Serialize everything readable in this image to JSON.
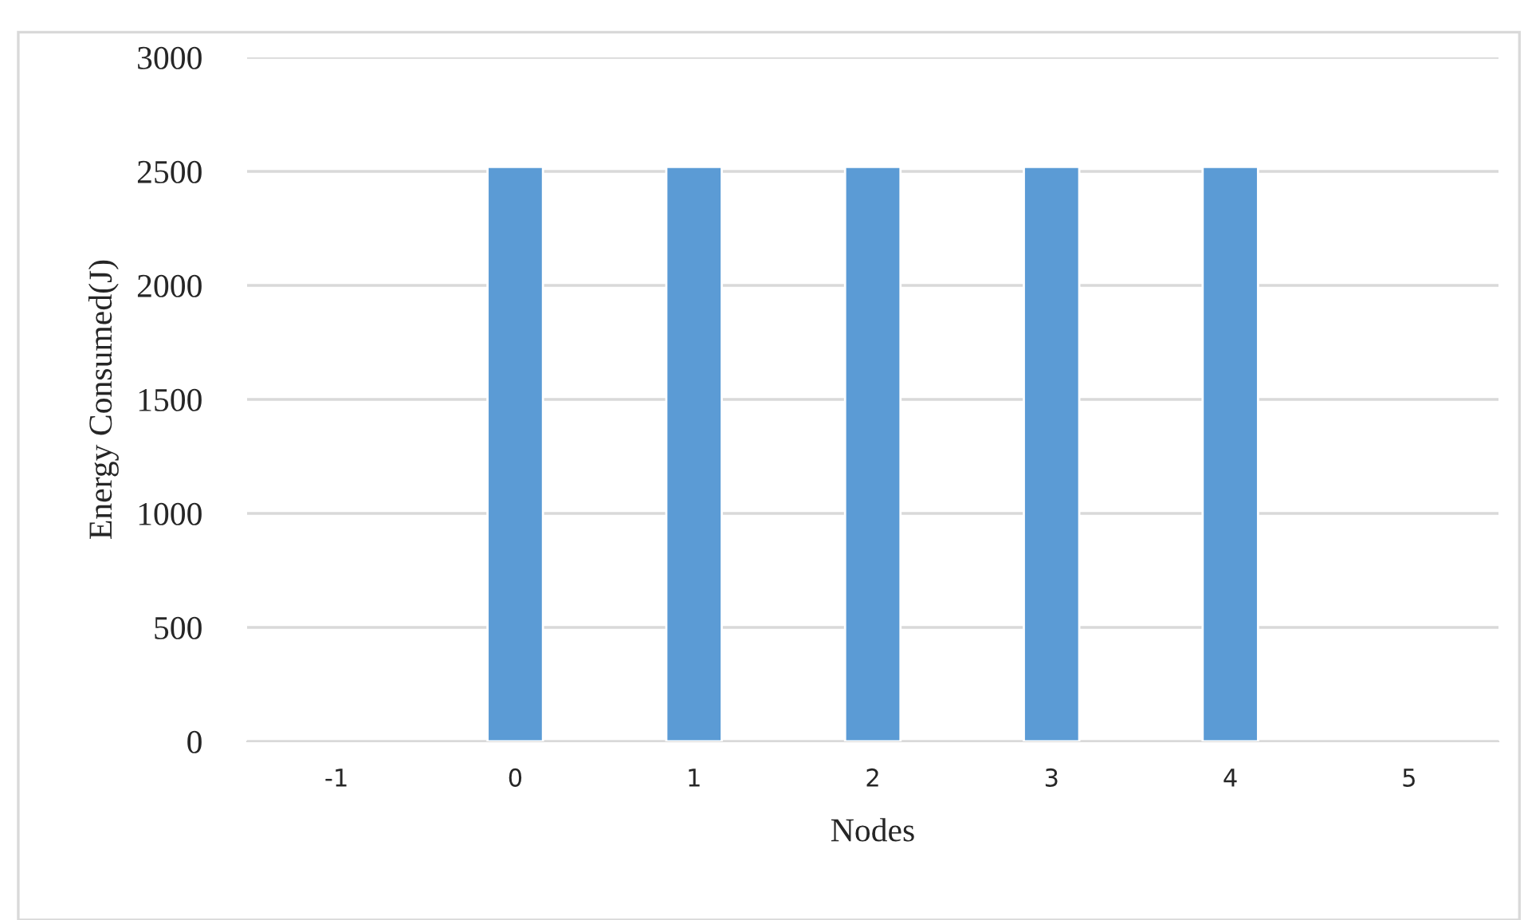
{
  "chart_data": {
    "type": "bar",
    "xlabel": "Nodes",
    "ylabel": "Energy Consumed(J)",
    "categories": [
      "-1",
      "0",
      "1",
      "2",
      "3",
      "4",
      "5"
    ],
    "values": [
      null,
      2520,
      2520,
      2520,
      2520,
      2520,
      null
    ],
    "color": "#5b9bd5",
    "ylim": [
      0,
      3000
    ],
    "yticks": [
      0,
      500,
      1000,
      1500,
      2000,
      2500,
      3000
    ],
    "grid": "y",
    "legend": false
  }
}
